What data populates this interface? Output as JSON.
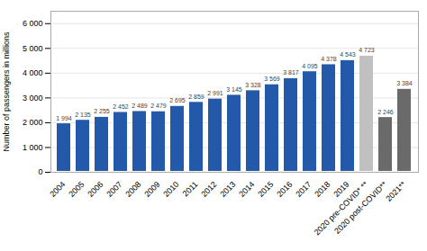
{
  "chart_data": {
    "type": "bar",
    "categories": [
      "2004",
      "2005",
      "2006",
      "2007",
      "2008",
      "2009",
      "2010",
      "2011",
      "2012",
      "2013",
      "2014",
      "2015",
      "2016",
      "2017",
      "2018",
      "2019",
      "2020 pre-COVID* **",
      "2020 post-COVID**",
      "2021**"
    ],
    "values": [
      1994,
      2135,
      2255,
      2452,
      2489,
      2479,
      2695,
      2859,
      2991,
      3145,
      3328,
      3569,
      3817,
      4095,
      4378,
      4543,
      4723,
      2246,
      3384
    ],
    "value_labels": [
      "1 994",
      "2 135",
      "2 255",
      "2 452",
      "2 489",
      "2 479",
      "2 695",
      "2 859",
      "2 991",
      "3 145",
      "3 328",
      "3 569",
      "3 817",
      "4 095",
      "4 378",
      "4 543",
      "4 723",
      "2 246",
      "3 384"
    ],
    "colors": [
      "#2458a8",
      "#2458a8",
      "#2458a8",
      "#2458a8",
      "#2458a8",
      "#2458a8",
      "#2458a8",
      "#2458a8",
      "#2458a8",
      "#2458a8",
      "#2458a8",
      "#2458a8",
      "#2458a8",
      "#2458a8",
      "#2458a8",
      "#2458a8",
      "#c0c0c0",
      "#6a6a6a",
      "#6a6a6a"
    ],
    "ylabel": "Number of passengers in millions",
    "ylim": [
      0,
      6500
    ],
    "yticks": [
      0,
      {
        "value": 1000,
        "label": "1 000"
      },
      {
        "value": 2000,
        "label": "2 000"
      },
      {
        "value": 3000,
        "label": "3 000"
      },
      {
        "value": 4000,
        "label": "4 000"
      },
      {
        "value": 5000,
        "label": "5 000"
      },
      {
        "value": 6000,
        "label": "6 000"
      }
    ],
    "grid": true,
    "data_labels": true
  }
}
